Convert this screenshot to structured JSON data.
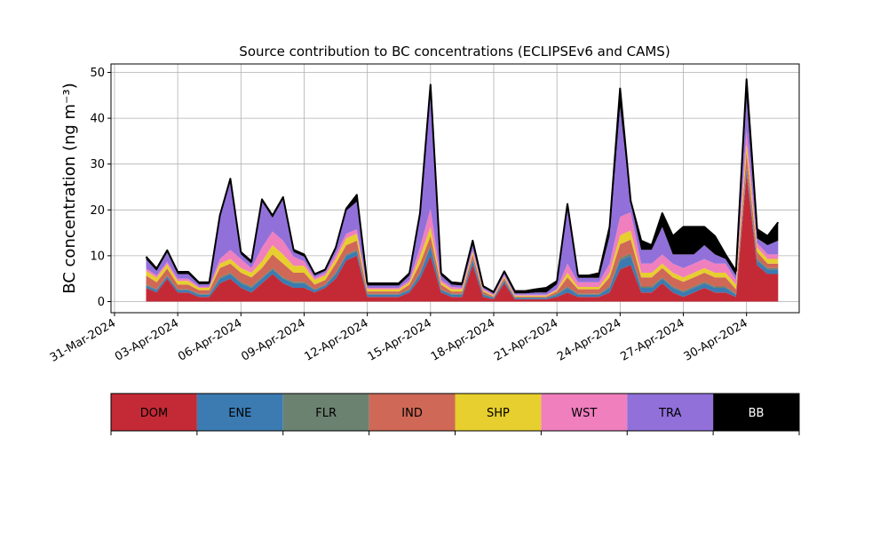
{
  "chart_data": {
    "type": "area",
    "stacked": true,
    "title": "Source contribution to BC concentrations (ECLIPSEv6 and CAMS)",
    "ylabel": "BC concentration (ng m⁻³)",
    "xlabel": "",
    "ylim": [
      0,
      52
    ],
    "xlim": [
      "2024-03-30T20:00",
      "2024-05-02T12:00"
    ],
    "yticks": [
      0,
      10,
      20,
      30,
      40,
      50
    ],
    "xticks": [
      "31-Mar-2024",
      "03-Apr-2024",
      "06-Apr-2024",
      "09-Apr-2024",
      "12-Apr-2024",
      "15-Apr-2024",
      "18-Apr-2024",
      "21-Apr-2024",
      "24-Apr-2024",
      "27-Apr-2024",
      "30-Apr-2024"
    ],
    "grid": true,
    "x": [
      "2024-04-01T12:00",
      "2024-04-02T00:00",
      "2024-04-02T12:00",
      "2024-04-03T00:00",
      "2024-04-03T12:00",
      "2024-04-04T00:00",
      "2024-04-04T12:00",
      "2024-04-05T00:00",
      "2024-04-05T12:00",
      "2024-04-06T00:00",
      "2024-04-06T12:00",
      "2024-04-07T00:00",
      "2024-04-07T12:00",
      "2024-04-08T00:00",
      "2024-04-08T12:00",
      "2024-04-09T00:00",
      "2024-04-09T12:00",
      "2024-04-10T00:00",
      "2024-04-10T12:00",
      "2024-04-11T00:00",
      "2024-04-11T12:00",
      "2024-04-12T00:00",
      "2024-04-12T12:00",
      "2024-04-13T00:00",
      "2024-04-13T12:00",
      "2024-04-14T00:00",
      "2024-04-14T12:00",
      "2024-04-15T00:00",
      "2024-04-15T12:00",
      "2024-04-16T00:00",
      "2024-04-16T12:00",
      "2024-04-17T00:00",
      "2024-04-17T12:00",
      "2024-04-18T00:00",
      "2024-04-18T12:00",
      "2024-04-19T00:00",
      "2024-04-19T12:00",
      "2024-04-20T00:00",
      "2024-04-20T12:00",
      "2024-04-21T00:00",
      "2024-04-21T12:00",
      "2024-04-22T00:00",
      "2024-04-22T12:00",
      "2024-04-23T00:00",
      "2024-04-23T12:00",
      "2024-04-24T00:00",
      "2024-04-24T12:00",
      "2024-04-25T00:00",
      "2024-04-25T12:00",
      "2024-04-26T00:00",
      "2024-04-26T12:00",
      "2024-04-27T00:00",
      "2024-04-27T12:00",
      "2024-04-28T00:00",
      "2024-04-28T12:00",
      "2024-04-29T00:00",
      "2024-04-29T12:00",
      "2024-04-30T00:00",
      "2024-04-30T12:00",
      "2024-05-01T00:00",
      "2024-05-01T12:00"
    ],
    "series": [
      {
        "name": "DOM",
        "color": "#c42a36",
        "values": [
          3,
          2,
          5,
          2,
          2,
          1,
          1,
          4,
          5,
          3,
          2,
          4,
          6,
          4,
          3,
          3,
          2,
          3,
          5,
          9,
          10,
          1,
          1,
          1,
          1,
          2,
          5,
          10,
          2,
          1,
          1,
          8,
          1,
          0.5,
          4,
          0.5,
          0.5,
          0.5,
          0.5,
          1,
          2,
          1,
          1,
          1,
          2,
          7,
          8,
          2,
          2,
          4,
          2,
          1,
          2,
          3,
          2,
          2,
          1,
          28,
          8,
          6,
          6
        ]
      },
      {
        "name": "ENE",
        "color": "#3b7bb2",
        "values": [
          0.5,
          0.5,
          0.5,
          0.5,
          0.5,
          0.5,
          0.5,
          1,
          1,
          1,
          1,
          1,
          1,
          1,
          1,
          1,
          0.5,
          0.5,
          1,
          1,
          1,
          0.5,
          0.5,
          0.5,
          0.5,
          0.5,
          1,
          2,
          0.5,
          0.5,
          0.5,
          1,
          0.5,
          0.3,
          0.5,
          0.3,
          0.3,
          0.3,
          0.3,
          0.5,
          1,
          0.5,
          0.5,
          0.5,
          1,
          2,
          2,
          1,
          1,
          1,
          1,
          1,
          1,
          1,
          1,
          1,
          0.5,
          1,
          1,
          1,
          1
        ]
      },
      {
        "name": "FLR",
        "color": "#6c8271",
        "values": [
          0.2,
          0.2,
          0.2,
          0.2,
          0.2,
          0.2,
          0.2,
          0.3,
          0.3,
          0.3,
          0.3,
          0.3,
          0.3,
          0.3,
          0.3,
          0.3,
          0.2,
          0.2,
          0.3,
          0.3,
          0.3,
          0.2,
          0.2,
          0.2,
          0.2,
          0.2,
          0.3,
          0.3,
          0.2,
          0.2,
          0.2,
          0.3,
          0.2,
          0.1,
          0.2,
          0.1,
          0.1,
          0.1,
          0.1,
          0.2,
          0.3,
          0.2,
          0.2,
          0.2,
          0.3,
          0.5,
          0.5,
          0.3,
          0.3,
          0.3,
          0.3,
          0.3,
          0.3,
          0.3,
          0.3,
          0.3,
          0.2,
          0.5,
          0.3,
          0.3,
          0.3
        ]
      },
      {
        "name": "IND",
        "color": "#cf6856",
        "values": [
          2,
          1.5,
          1.5,
          1,
          1,
          0.8,
          0.8,
          2,
          2,
          2,
          2,
          2,
          3,
          3,
          2,
          2,
          1,
          1,
          2,
          2,
          2,
          0.5,
          0.5,
          0.5,
          0.5,
          1,
          2,
          2,
          1,
          0.5,
          0.5,
          1,
          0.5,
          0.2,
          0.5,
          0.2,
          0.2,
          0.2,
          0.2,
          0.5,
          2,
          1,
          1,
          1,
          2,
          3,
          3,
          2,
          2,
          2,
          2,
          2,
          2,
          2,
          2,
          2,
          1,
          3,
          1.5,
          1,
          1
        ]
      },
      {
        "name": "SHP",
        "color": "#e6cf2e",
        "values": [
          1,
          1,
          1,
          0.8,
          0.8,
          0.5,
          0.5,
          1,
          1,
          1,
          1,
          1.5,
          2,
          2,
          1.5,
          1.5,
          1,
          1,
          1,
          1.5,
          1.5,
          0.5,
          0.5,
          0.5,
          0.5,
          0.5,
          1.5,
          2,
          0.5,
          0.5,
          0.5,
          0.5,
          0.3,
          0.2,
          0.3,
          0.2,
          0.2,
          0.2,
          0.2,
          0.3,
          1,
          0.5,
          0.5,
          0.5,
          1,
          2,
          2,
          1,
          1,
          1,
          1,
          1,
          1,
          1,
          1,
          1,
          1,
          2,
          1,
          1,
          1
        ]
      },
      {
        "name": "WST",
        "color": "#f07fbe",
        "values": [
          0.5,
          0.5,
          0.5,
          0.5,
          0.5,
          0.3,
          0.3,
          1,
          2,
          2,
          1,
          3,
          3,
          3,
          2,
          1,
          0.5,
          0.5,
          1,
          1,
          1,
          0.3,
          0.3,
          0.3,
          0.3,
          0.5,
          2,
          4,
          0.5,
          0.5,
          0.3,
          0.5,
          0.3,
          0.2,
          0.3,
          0.2,
          0.2,
          0.2,
          0.2,
          0.3,
          2,
          1,
          1,
          1,
          2,
          4,
          4,
          2,
          2,
          2,
          2,
          2,
          2,
          2,
          2,
          2,
          1,
          3,
          1,
          1,
          1
        ]
      },
      {
        "name": "TRA",
        "color": "#9170da",
        "values": [
          2,
          1,
          2,
          1,
          1,
          0.5,
          0.5,
          9,
          15,
          1,
          1,
          10,
          3,
          9,
          1,
          1,
          0.5,
          0.5,
          1,
          5,
          6,
          0.5,
          0.5,
          0.5,
          0.5,
          1,
          7,
          25,
          1,
          0.5,
          0.5,
          1,
          0.3,
          0.3,
          0.5,
          0.3,
          0.3,
          0.5,
          0.5,
          1,
          12,
          1,
          1,
          1,
          6,
          24,
          2,
          3,
          3,
          6,
          2,
          3,
          2,
          3,
          2,
          1,
          1,
          7,
          1,
          2,
          3
        ]
      },
      {
        "name": "BB",
        "color": "#000000",
        "values": [
          0.6,
          0.5,
          0.5,
          0.5,
          0.5,
          0.4,
          0.4,
          0.5,
          0.5,
          0.5,
          0.5,
          0.5,
          0.5,
          0.5,
          0.5,
          0.5,
          0.3,
          0.3,
          0.5,
          0.5,
          1.5,
          0.5,
          0.5,
          0.5,
          0.5,
          0.5,
          0.5,
          2,
          0.5,
          0.5,
          0.5,
          1,
          0.3,
          0.3,
          0.3,
          0.5,
          0.5,
          0.7,
          1,
          0.7,
          1,
          0.5,
          0.5,
          1,
          2,
          4,
          0.5,
          2,
          1,
          3,
          4,
          6,
          6,
          4,
          4,
          1,
          1,
          4,
          2,
          2,
          4
        ]
      }
    ]
  }
}
